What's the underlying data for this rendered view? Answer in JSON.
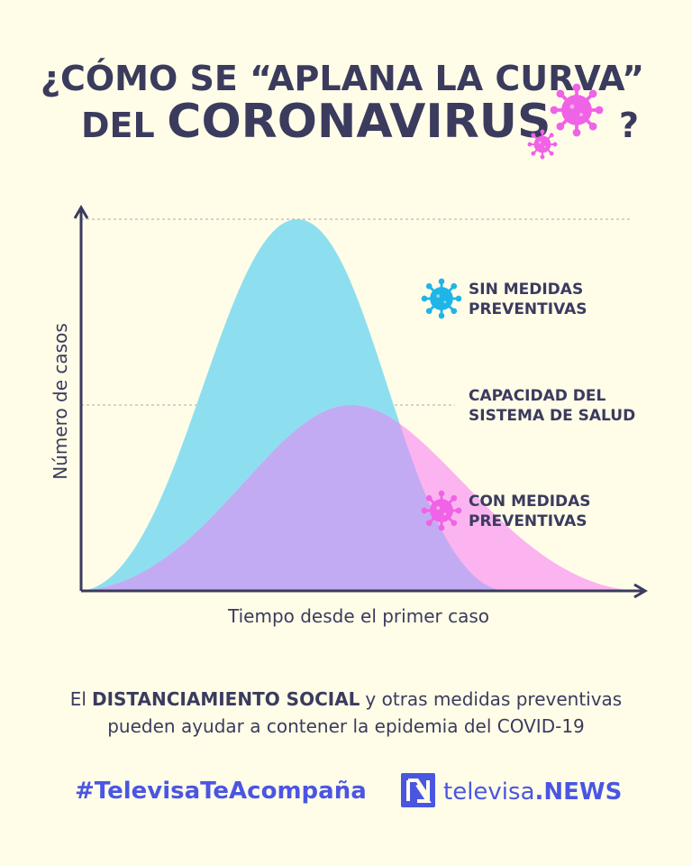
{
  "title": {
    "line1": "¿CÓMO SE “APLANA LA CURVA”",
    "line2_prefix": "DEL",
    "line2_main": "CORONAVIRUS",
    "line2_suffix": "?"
  },
  "graph": {
    "y_axis_label": "Número de casos",
    "x_axis_label": "Tiempo desde el primer caso",
    "labels": [
      {
        "lines": [
          "SIN MEDIDAS",
          "PREVENTIVAS"
        ]
      },
      {
        "lines": [
          "CAPACIDAD DEL",
          "SISTEMA DE SALUD"
        ]
      },
      {
        "lines": [
          "CON MEDIDAS",
          "PREVENTIVAS"
        ]
      }
    ]
  },
  "caption": {
    "line1": [
      "El",
      "DISTANCIAMIENTO SOCIAL",
      "y otras medidas preventivas"
    ],
    "line2": "pueden ayudar a contener la epidemia del COVID-19"
  },
  "footer": {
    "hashtag": "#TelevisaTeAcompaña",
    "brand": "televisa",
    "brand_suffix": ".NEWS"
  }
}
